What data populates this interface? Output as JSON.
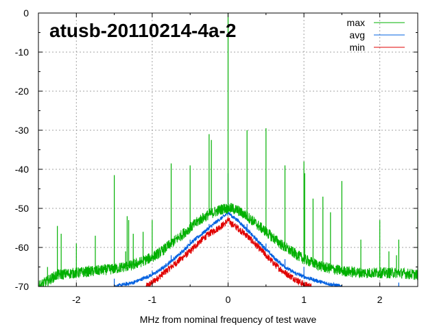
{
  "chart_data": {
    "type": "line",
    "title": "atusb-20110214-4a-2",
    "xlabel": "MHz from nominal frequency of test wave",
    "ylabel": "",
    "xlim": [
      -2.5,
      2.5
    ],
    "ylim": [
      -70,
      0
    ],
    "x_ticks": [
      -2,
      -1,
      0,
      1,
      2
    ],
    "y_ticks": [
      0,
      -10,
      -20,
      -30,
      -40,
      -50,
      -60,
      -70
    ],
    "grid": true,
    "legend_position": "top-right",
    "series": [
      {
        "name": "max",
        "color": "#00b000",
        "x": [
          -2.5,
          -2.25,
          -2.0,
          -1.75,
          -1.5,
          -1.25,
          -1.0,
          -0.875,
          -0.75,
          -0.625,
          -0.5,
          -0.375,
          -0.25,
          -0.125,
          -0.05,
          0.0,
          0.05,
          0.125,
          0.25,
          0.375,
          0.5,
          0.625,
          0.75,
          0.875,
          1.0,
          1.25,
          1.5,
          1.75,
          2.0,
          2.25,
          2.5
        ],
        "y": [
          -70,
          -67,
          -66.5,
          -66,
          -65.5,
          -64.5,
          -62.5,
          -61,
          -59,
          -57,
          -55,
          -53,
          -51.5,
          -50.5,
          -50,
          0,
          -50,
          -50.5,
          -52,
          -54,
          -56,
          -58,
          -60,
          -61.5,
          -63,
          -65,
          -66,
          -66.5,
          -66.5,
          -66.5,
          -67
        ],
        "spikes": [
          {
            "x": -2.38,
            "y": -65
          },
          {
            "x": -2.25,
            "y": -54.5
          },
          {
            "x": -2.2,
            "y": -56.5
          },
          {
            "x": -2.0,
            "y": -59
          },
          {
            "x": -1.75,
            "y": -57
          },
          {
            "x": -1.5,
            "y": -41.5
          },
          {
            "x": -1.35,
            "y": -61
          },
          {
            "x": -1.33,
            "y": -52
          },
          {
            "x": -1.31,
            "y": -53
          },
          {
            "x": -1.25,
            "y": -56.5
          },
          {
            "x": -1.12,
            "y": -56
          },
          {
            "x": -1.0,
            "y": -53
          },
          {
            "x": -0.99,
            "y": -63
          },
          {
            "x": -0.75,
            "y": -38.5
          },
          {
            "x": -0.5,
            "y": -39
          },
          {
            "x": -0.25,
            "y": -31
          },
          {
            "x": -0.22,
            "y": -32.5
          },
          {
            "x": 0.0,
            "y": 0
          },
          {
            "x": 0.25,
            "y": -30
          },
          {
            "x": 0.5,
            "y": -29.5
          },
          {
            "x": 0.75,
            "y": -39
          },
          {
            "x": 1.0,
            "y": -38
          },
          {
            "x": 1.01,
            "y": -41
          },
          {
            "x": 1.12,
            "y": -47.5
          },
          {
            "x": 1.25,
            "y": -47
          },
          {
            "x": 1.35,
            "y": -51
          },
          {
            "x": 1.5,
            "y": -43
          },
          {
            "x": 1.75,
            "y": -58
          },
          {
            "x": 2.0,
            "y": -53
          },
          {
            "x": 2.12,
            "y": -61
          },
          {
            "x": 2.22,
            "y": -62
          },
          {
            "x": 2.25,
            "y": -58
          },
          {
            "x": 2.5,
            "y": -50.5
          }
        ]
      },
      {
        "name": "avg",
        "color": "#0060e0",
        "x": [
          -1.5,
          -1.25,
          -1.0,
          -0.875,
          -0.75,
          -0.625,
          -0.5,
          -0.375,
          -0.25,
          -0.125,
          -0.05,
          0.0,
          0.05,
          0.125,
          0.25,
          0.375,
          0.5,
          0.625,
          0.75,
          0.875,
          1.0,
          1.25,
          1.5
        ],
        "y": [
          -70,
          -69,
          -67,
          -65.5,
          -63.5,
          -61.5,
          -59,
          -57,
          -55,
          -53,
          -52,
          -51,
          -52,
          -53,
          -55.5,
          -58,
          -60.5,
          -63,
          -65,
          -66.5,
          -67.5,
          -69,
          -70
        ],
        "spikes": [
          {
            "x": -1.5,
            "y": -68
          },
          {
            "x": -1.0,
            "y": -66
          },
          {
            "x": -0.75,
            "y": -62
          },
          {
            "x": -0.5,
            "y": -58
          },
          {
            "x": -0.25,
            "y": -54
          },
          {
            "x": 0.0,
            "y": -41
          },
          {
            "x": 0.25,
            "y": -54
          },
          {
            "x": 0.5,
            "y": -59
          },
          {
            "x": 0.75,
            "y": -63
          },
          {
            "x": 1.0,
            "y": -65
          },
          {
            "x": 2.25,
            "y": -69
          }
        ]
      },
      {
        "name": "min",
        "color": "#e00000",
        "x": [
          -1.08,
          -1.0,
          -0.875,
          -0.75,
          -0.625,
          -0.5,
          -0.375,
          -0.25,
          -0.125,
          -0.05,
          0.0,
          0.05,
          0.125,
          0.25,
          0.375,
          0.5,
          0.625,
          0.75,
          0.875,
          1.0,
          1.1
        ],
        "y": [
          -70,
          -69,
          -67,
          -65,
          -63,
          -61,
          -58.5,
          -56.5,
          -55,
          -54,
          -53,
          -54,
          -55,
          -57,
          -59.5,
          -62,
          -64.5,
          -66.5,
          -68,
          -69.5,
          -70
        ],
        "spikes": []
      }
    ]
  }
}
